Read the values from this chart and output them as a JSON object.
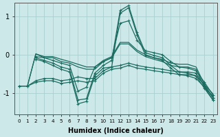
{
  "xlabel": "Humidex (Indice chaleur)",
  "xlim": [
    -0.5,
    23.5
  ],
  "ylim": [
    -1.55,
    1.35
  ],
  "yticks": [
    -1,
    0,
    1
  ],
  "xticks": [
    0,
    1,
    2,
    3,
    4,
    5,
    6,
    7,
    8,
    9,
    10,
    11,
    12,
    13,
    14,
    15,
    16,
    17,
    18,
    19,
    20,
    21,
    22,
    23
  ],
  "bg_color": "#cce8e8",
  "line_color": "#1a6b60",
  "grid_color": "#aacfcf",
  "series_no_marker": [
    [
      null,
      -0.82,
      0.02,
      -0.08,
      -0.08,
      -0.18,
      -0.22,
      -0.32,
      -0.38,
      -0.38,
      -0.18,
      -0.08,
      0.28,
      0.28,
      0.08,
      -0.05,
      -0.12,
      -0.18,
      -0.28,
      -0.32,
      -0.32,
      -0.38,
      -0.85,
      -1.08
    ],
    [
      null,
      -0.82,
      0.02,
      -0.05,
      -0.05,
      -0.12,
      -0.18,
      -0.25,
      -0.32,
      -0.32,
      -0.15,
      -0.05,
      0.32,
      0.32,
      0.12,
      0.0,
      -0.08,
      -0.12,
      -0.22,
      -0.25,
      -0.25,
      -0.32,
      -0.78,
      -1.02
    ]
  ],
  "series_with_marker": [
    [
      -0.82,
      -0.82,
      -0.72,
      -0.68,
      -0.68,
      -0.75,
      -0.72,
      -0.68,
      -0.72,
      -0.68,
      -0.48,
      -0.38,
      -0.35,
      -0.28,
      -0.35,
      -0.38,
      -0.42,
      -0.45,
      -0.48,
      -0.52,
      -0.52,
      -0.55,
      -0.88,
      -1.18
    ],
    [
      -0.82,
      -0.82,
      -0.68,
      -0.62,
      -0.62,
      -0.68,
      -0.65,
      -0.58,
      -0.62,
      -0.62,
      -0.42,
      -0.32,
      -0.28,
      -0.22,
      -0.28,
      -0.32,
      -0.35,
      -0.38,
      -0.42,
      -0.45,
      -0.45,
      -0.48,
      -0.82,
      -1.12
    ],
    [
      null,
      null,
      -0.12,
      -0.18,
      -0.28,
      -0.38,
      -0.45,
      -1.28,
      -1.22,
      -0.55,
      -0.35,
      -0.32,
      1.08,
      1.22,
      0.52,
      -0.02,
      -0.08,
      -0.15,
      -0.35,
      -0.52,
      -0.55,
      -0.62,
      -0.85,
      -1.18
    ],
    [
      null,
      null,
      -0.08,
      -0.15,
      -0.22,
      -0.32,
      -0.38,
      -1.18,
      -1.15,
      -0.48,
      -0.28,
      -0.15,
      1.15,
      1.28,
      0.58,
      0.05,
      -0.02,
      -0.08,
      -0.28,
      -0.45,
      -0.48,
      -0.55,
      -0.78,
      -1.12
    ],
    [
      null,
      null,
      -0.05,
      -0.08,
      -0.15,
      -0.22,
      -0.28,
      -0.95,
      -0.85,
      -0.32,
      -0.18,
      -0.08,
      0.82,
      0.88,
      0.38,
      0.1,
      0.05,
      0.0,
      -0.18,
      -0.32,
      -0.35,
      -0.42,
      -0.72,
      -1.05
    ]
  ]
}
